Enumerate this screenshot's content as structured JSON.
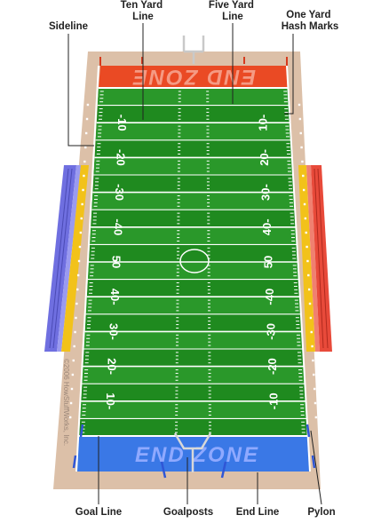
{
  "labels": {
    "sideline": "Sideline",
    "ten_yard_line": [
      "Ten Yard",
      "Line"
    ],
    "five_yard_line": [
      "Five Yard",
      "Line"
    ],
    "one_yard_hash_marks": [
      "One Yard",
      "Hash Marks"
    ],
    "goal_line": "Goal Line",
    "goalposts": "Goalposts",
    "end_line": "End Line",
    "pylon": "Pylon"
  },
  "end_zone_top": "END ZONE",
  "end_zone_bottom": "END ZONE",
  "copyright": "©2006 HowStuffWorks, Inc.",
  "yard_numbers_left": [
    "-10",
    "-20",
    "-30",
    "-40",
    "50",
    "40-",
    "30-",
    "20-",
    "10-"
  ],
  "yard_numbers_right": [
    "10-",
    "20-",
    "30-",
    "40-",
    "50",
    "-40",
    "-30",
    "-20",
    "-10"
  ],
  "colors": {
    "border": "#dcc0a8",
    "field_dark": "#1f8a1f",
    "field_light": "#36a336",
    "end_zone_top": "#ea4a24",
    "end_zone_bottom": "#3a78e6",
    "stands_left": "#6f6fe0",
    "stands_right": "#e84a3a",
    "stands_yellow": "#f2c21a"
  }
}
